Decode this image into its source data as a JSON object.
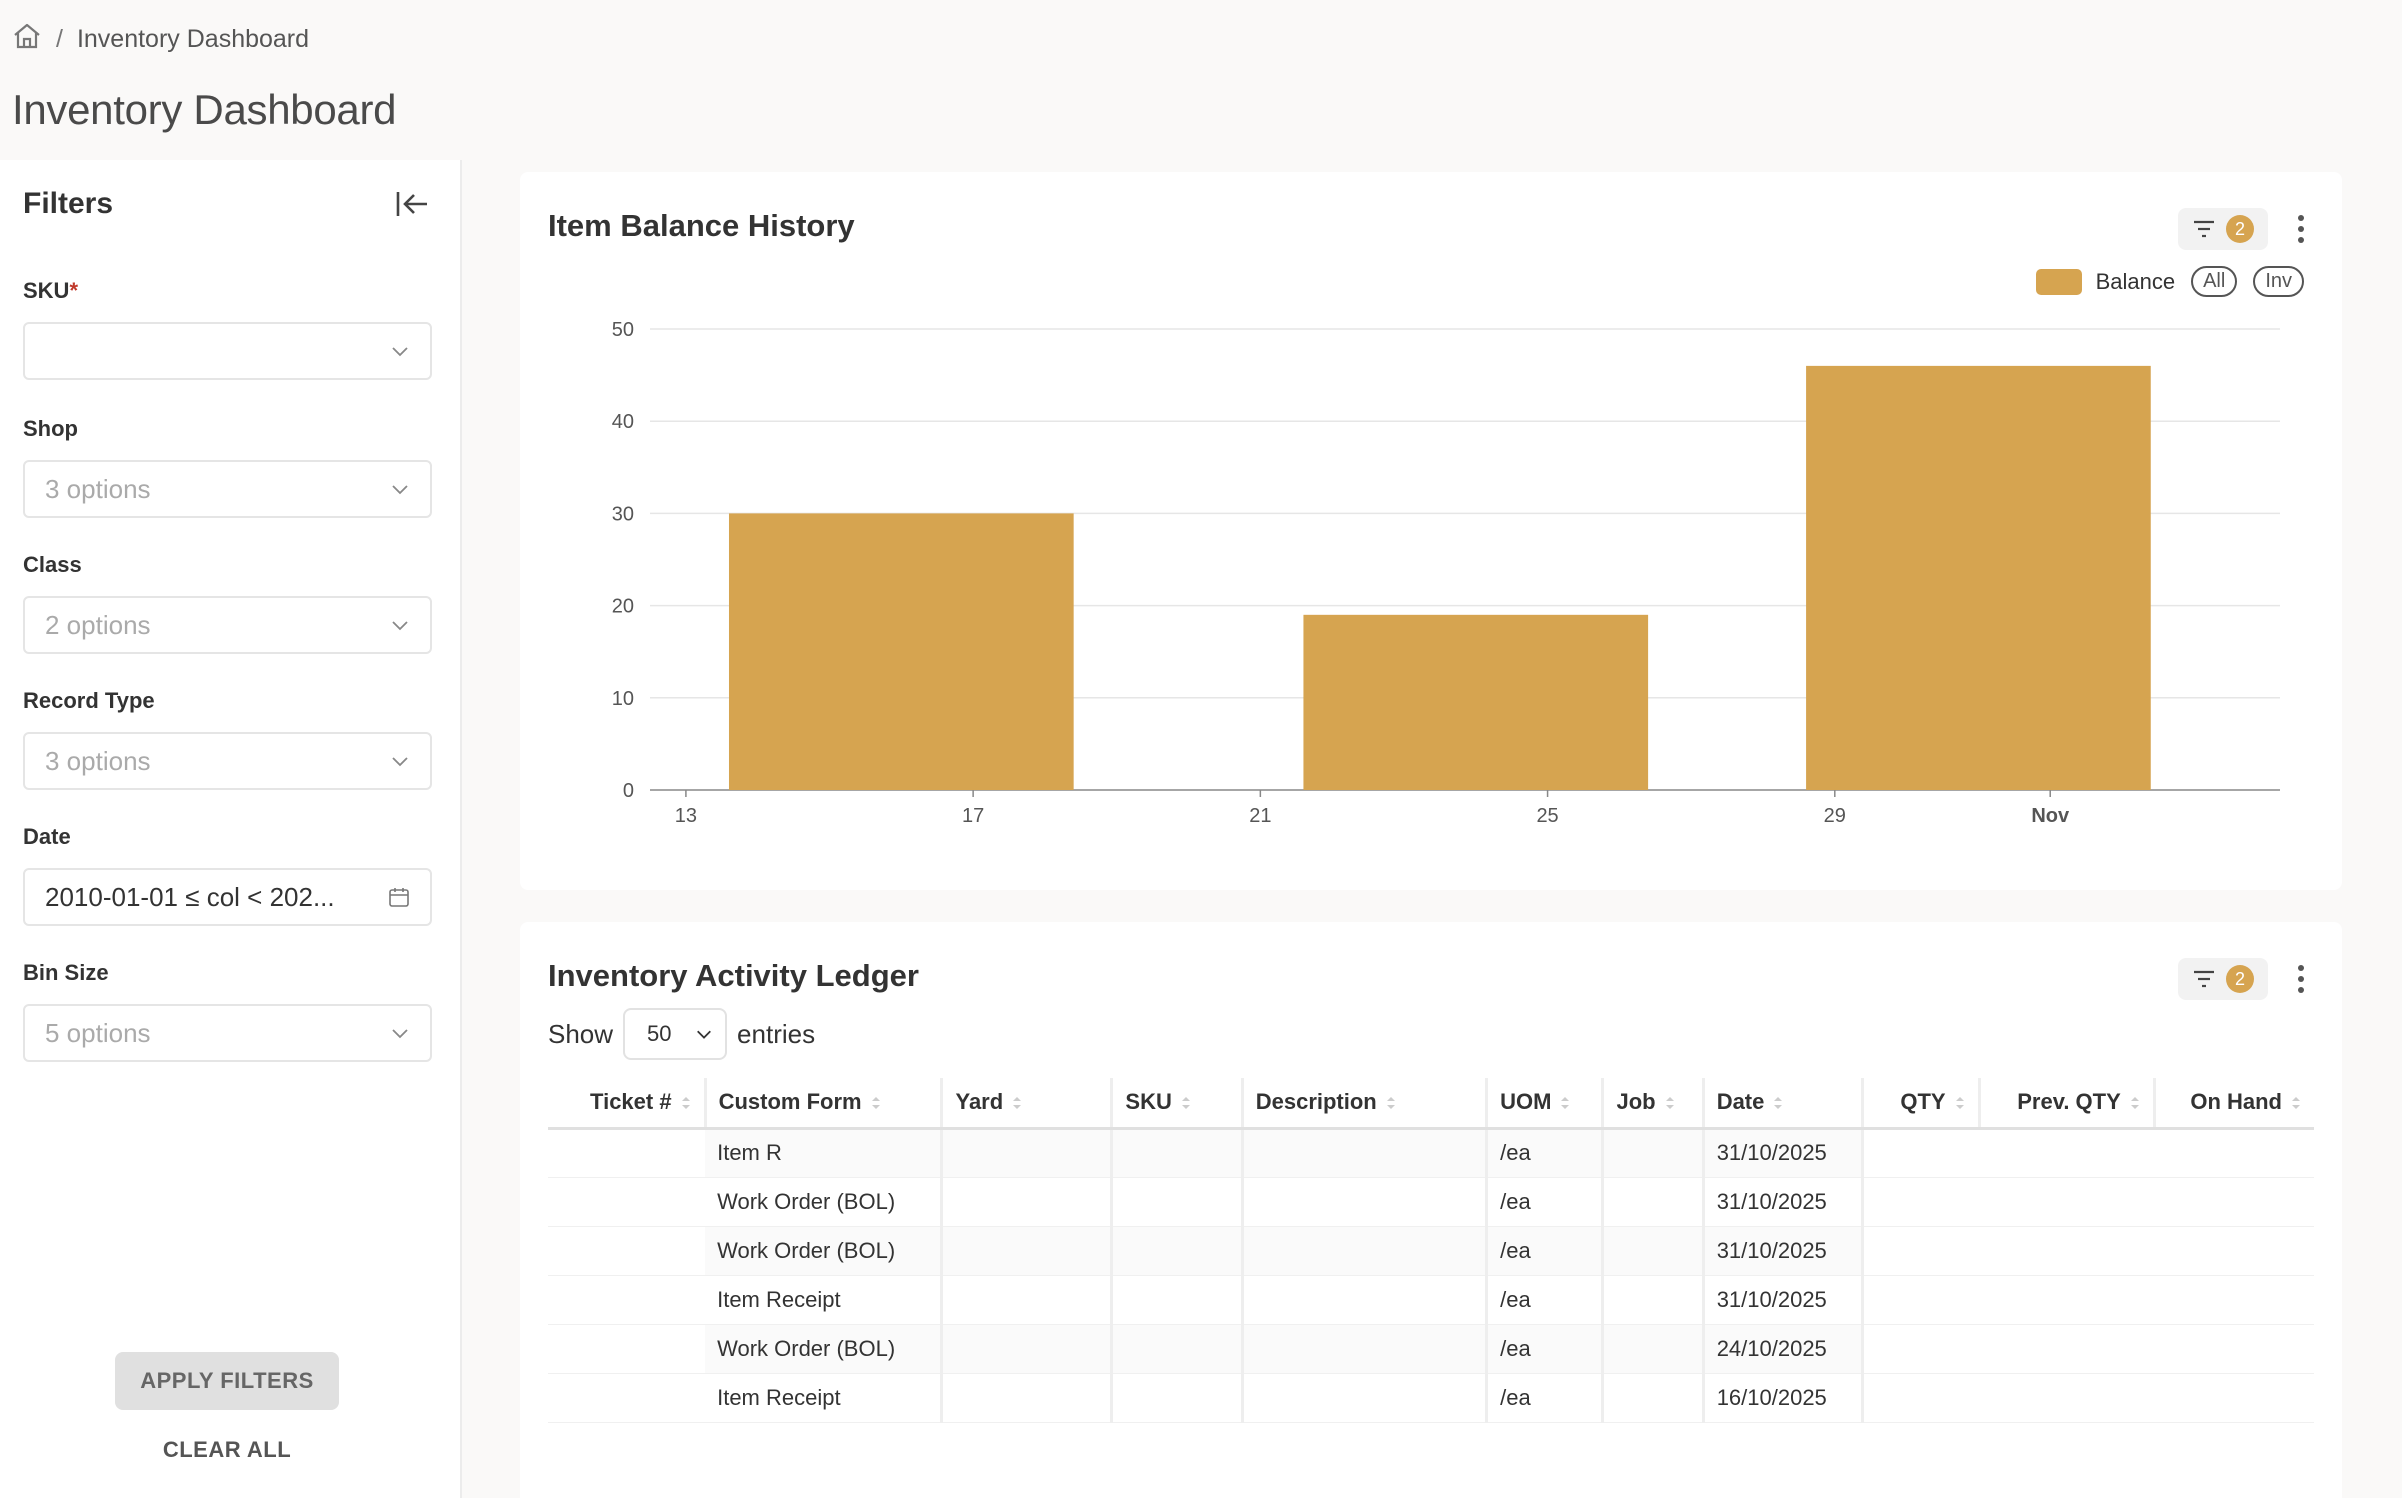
{
  "breadcrumb": {
    "home_icon": "home-icon",
    "separator": "/",
    "current": "Inventory Dashboard"
  },
  "page_title": "Inventory Dashboard",
  "filters": {
    "title": "Filters",
    "collapse_icon": "collapse-left-icon",
    "sku": {
      "label": "SKU",
      "required_mark": "*",
      "value": ""
    },
    "shop": {
      "label": "Shop",
      "value": "3 options"
    },
    "class": {
      "label": "Class",
      "value": "2 options"
    },
    "record_type": {
      "label": "Record Type",
      "value": "3 options"
    },
    "date": {
      "label": "Date",
      "value": "2010-01-01 ≤ col < 202..."
    },
    "bin_size": {
      "label": "Bin Size",
      "value": "5 options"
    },
    "apply_label": "APPLY FILTERS",
    "clear_label": "CLEAR ALL"
  },
  "balance_card": {
    "title": "Item Balance History",
    "filter_count": "2",
    "legend": {
      "series": "Balance",
      "pill_all": "All",
      "pill_inv": "Inv"
    }
  },
  "chart_data": {
    "type": "bar",
    "x_ticks": [
      "13",
      "17",
      "21",
      "25",
      "29",
      "Nov"
    ],
    "bars": [
      {
        "start": "13.6",
        "end": "18.4",
        "value": 30
      },
      {
        "start": "21.6",
        "end": "26.4",
        "value": 19
      },
      {
        "start": "28.6",
        "end": "33.4",
        "value": 46
      }
    ],
    "series": [
      {
        "name": "Balance",
        "color": "#d6a450"
      }
    ],
    "ylim": [
      0,
      50
    ],
    "y_ticks": [
      0,
      10,
      20,
      30,
      40,
      50
    ],
    "grid": true,
    "legend": "top-right"
  },
  "ledger_card": {
    "title": "Inventory Activity Ledger",
    "filter_count": "2",
    "show_label": "Show",
    "entries_value": "50",
    "entries_label": "entries",
    "columns": [
      "Ticket #",
      "Custom Form",
      "Yard",
      "SKU",
      "Description",
      "UOM",
      "Job",
      "Date",
      "QTY",
      "Prev. QTY",
      "On Hand"
    ],
    "rows": [
      {
        "custom_form": "Item R",
        "uom": "/ea",
        "date": "31/10/2025"
      },
      {
        "custom_form": "Work Order (BOL)",
        "uom": "/ea",
        "date": "31/10/2025"
      },
      {
        "custom_form": "Work Order (BOL)",
        "uom": "/ea",
        "date": "31/10/2025"
      },
      {
        "custom_form": "Item Receipt",
        "uom": "/ea",
        "date": "31/10/2025"
      },
      {
        "custom_form": "Work Order (BOL)",
        "uom": "/ea",
        "date": "24/10/2025"
      },
      {
        "custom_form": "Item Receipt",
        "uom": "/ea",
        "date": "16/10/2025"
      }
    ]
  }
}
